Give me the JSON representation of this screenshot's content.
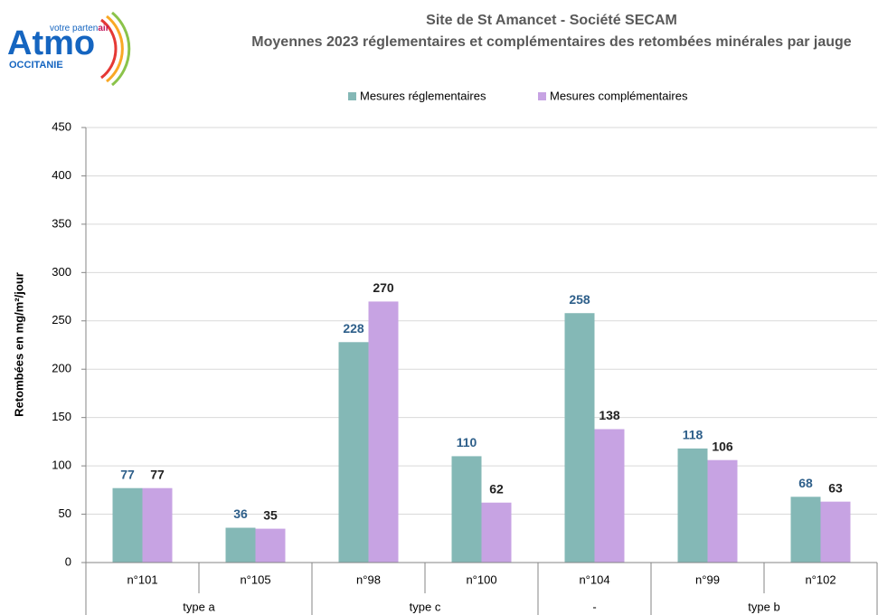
{
  "logo": {
    "name": "Atmo",
    "tagline": "votre parten",
    "tagline_bold": "air",
    "region": "OCCITANIE"
  },
  "chart_data": {
    "type": "bar",
    "title": "Site de St Amancet - Société SECAM",
    "subtitle": "Moyennes 2023 réglementaires et complémentaires des retombées minérales par jauge",
    "ylabel": "Retombées en mg/m²/jour",
    "categories": [
      "n°101",
      "n°105",
      "n°98",
      "n°100",
      "n°104",
      "n°99",
      "n°102"
    ],
    "category_groups": [
      "type a",
      "type a",
      "type c",
      "type c",
      "-",
      "type b",
      "type b"
    ],
    "series": [
      {
        "name": "Mesures réglementaires",
        "color": "#84b8b6",
        "label_color": "#2e5f8a",
        "values": [
          77,
          36,
          228,
          110,
          258,
          118,
          68
        ]
      },
      {
        "name": "Mesures complémentaires",
        "color": "#c7a3e3",
        "label_color": "#222222",
        "values": [
          77,
          35,
          270,
          62,
          138,
          106,
          63
        ]
      }
    ],
    "ylim": [
      0,
      450
    ],
    "yticks": [
      0,
      50,
      100,
      150,
      200,
      250,
      300,
      350,
      400,
      450
    ],
    "grid": true,
    "legend": "top"
  }
}
